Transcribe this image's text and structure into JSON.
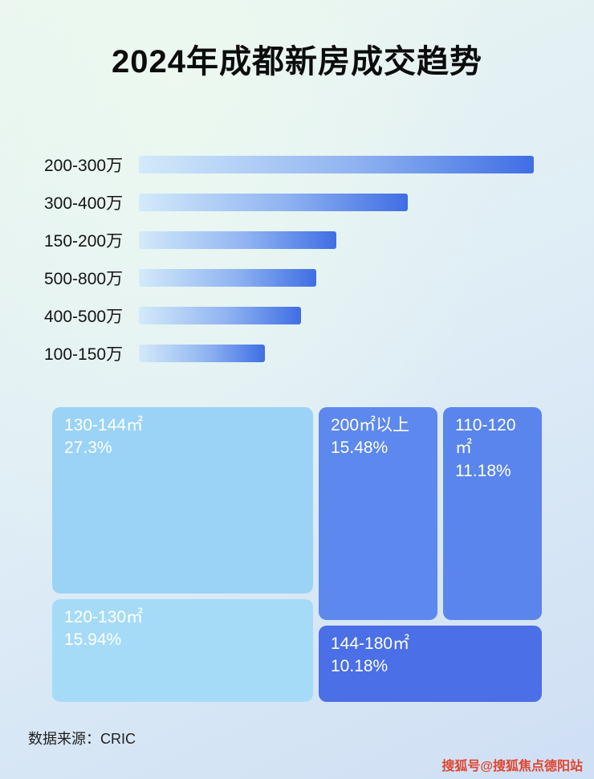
{
  "page": {
    "title": "2024年成都新房成交趋势",
    "source_label": "数据来源：CRIC",
    "watermark": "搜狐号@搜狐焦点德阳站"
  },
  "chart_data": [
    {
      "type": "bar",
      "orientation": "horizontal",
      "title": "2024年成都新房成交趋势",
      "categories": [
        "200-300万",
        "300-400万",
        "150-200万",
        "500-800万",
        "400-500万",
        "100-150万"
      ],
      "values": [
        100,
        68,
        50,
        45,
        41,
        32
      ],
      "xlim": [
        0,
        100
      ],
      "grid": false,
      "bar_gradient": [
        "#d3eafa",
        "#3f6ee4"
      ]
    },
    {
      "type": "treemap",
      "items": [
        {
          "label": "130-144㎡",
          "value": 27.3,
          "display": "27.3%",
          "color": "#9bd3f6"
        },
        {
          "label": "200㎡以上",
          "value": 15.48,
          "display": "15.48%",
          "color": "#5d88ee"
        },
        {
          "label": "110-120㎡",
          "value": 11.18,
          "display": "11.18%",
          "color": "#5a85ed"
        },
        {
          "label": "120-130㎡",
          "value": 15.94,
          "display": "15.94%",
          "color": "#a6dbf8"
        },
        {
          "label": "144-180㎡",
          "value": 10.18,
          "display": "10.18%",
          "color": "#4a6fe6"
        }
      ]
    }
  ]
}
